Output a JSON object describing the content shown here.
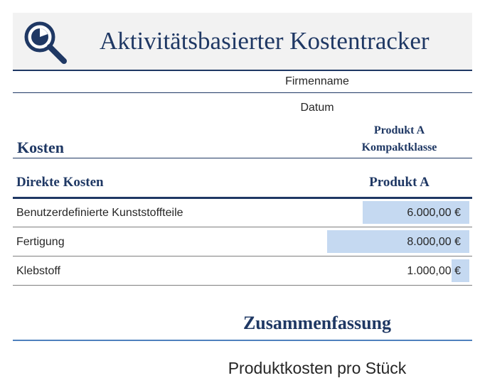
{
  "header": {
    "title": "Aktivitätsbasierter Kostentracker",
    "logo_icon": "magnifier-pie-chart-icon"
  },
  "fields": {
    "company_name": "Firmenname",
    "date": "Datum"
  },
  "costs_section": {
    "heading": "Kosten",
    "product_name": "Produkt A",
    "product_class": "Kompaktklasse"
  },
  "direct_costs": {
    "heading": "Direkte Kosten",
    "column_header": "Produkt A",
    "rows": [
      {
        "label": "Benutzerdefinierte Kunststoffteile",
        "amount": "6.000,00 €",
        "value": 6000
      },
      {
        "label": "Fertigung",
        "amount": "8.000,00 €",
        "value": 8000
      },
      {
        "label": "Klebstoff",
        "amount": "1.000,00 €",
        "value": 1000
      }
    ]
  },
  "summary": {
    "heading": "Zusammenfassung",
    "per_unit_label": "Produktkosten pro Stück"
  },
  "colors": {
    "accent_navy": "#1f3864",
    "databar_fill": "#c5d9f1",
    "summary_rule": "#4f81bd"
  }
}
